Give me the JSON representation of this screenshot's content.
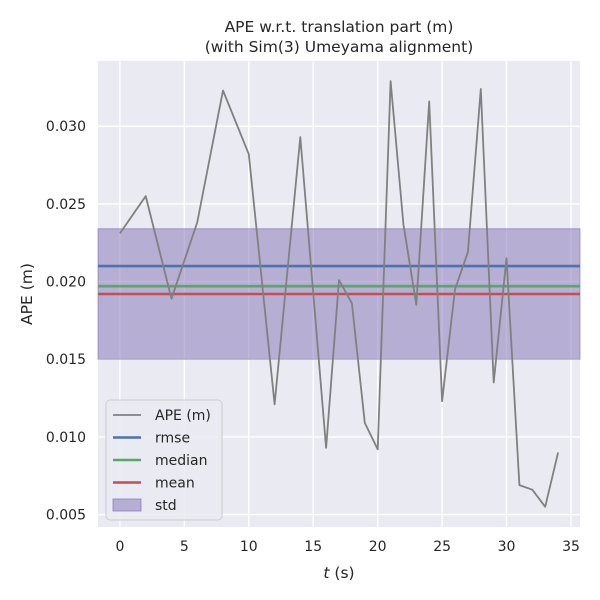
{
  "chart_data": {
    "type": "line",
    "title": "APE w.r.t. translation part (m)",
    "subtitle": "(with Sim(3) Umeyama alignment)",
    "xlabel_italic": "t",
    "xlabel_unit": "(s)",
    "ylabel": "APE (m)",
    "xlim": [
      -1.7,
      35.7
    ],
    "ylim": [
      0.0042,
      0.0342
    ],
    "xticks": [
      0,
      5,
      10,
      15,
      20,
      25,
      30,
      35
    ],
    "yticks": [
      0.005,
      0.01,
      0.015,
      0.02,
      0.025,
      0.03
    ],
    "xtick_labels": [
      "0",
      "5",
      "10",
      "15",
      "20",
      "25",
      "30",
      "35"
    ],
    "ytick_labels": [
      "0.005",
      "0.010",
      "0.015",
      "0.020",
      "0.025",
      "0.030"
    ],
    "grid": true,
    "legend_position": "lower left",
    "series": [
      {
        "name": "APE (m)",
        "color": "#808080",
        "x": [
          0,
          2,
          4,
          6,
          8,
          10,
          12,
          14,
          16,
          17,
          18,
          19,
          20,
          21,
          22,
          23,
          24,
          25,
          26,
          27,
          28,
          29,
          30,
          31,
          32,
          33,
          34
        ],
        "y": [
          0.0231,
          0.0255,
          0.0189,
          0.0238,
          0.0323,
          0.0282,
          0.0121,
          0.0293,
          0.0093,
          0.0201,
          0.0186,
          0.0109,
          0.0092,
          0.0329,
          0.0237,
          0.0185,
          0.0316,
          0.0123,
          0.0195,
          0.0219,
          0.0324,
          0.0135,
          0.0215,
          0.0069,
          0.0066,
          0.0055,
          0.009
        ]
      }
    ],
    "stats": [
      {
        "name": "rmse",
        "value": 0.021,
        "color": "#4c72b0"
      },
      {
        "name": "median",
        "value": 0.0197,
        "color": "#55a868"
      },
      {
        "name": "mean",
        "value": 0.0192,
        "color": "#c44e52"
      }
    ],
    "std_band": {
      "name": "std",
      "lower": 0.015,
      "upper": 0.0234,
      "color": "#8172b3"
    }
  }
}
